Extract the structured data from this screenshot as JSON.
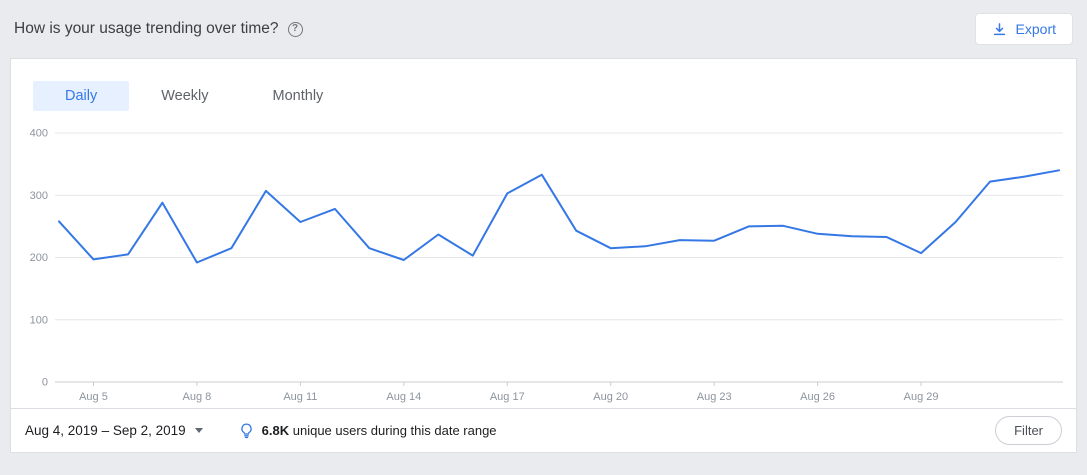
{
  "header": {
    "title": "How is your usage trending over time?",
    "help_glyph": "?",
    "export_label": "Export"
  },
  "tabs": [
    {
      "label": "Daily",
      "active": true
    },
    {
      "label": "Weekly",
      "active": false
    },
    {
      "label": "Monthly",
      "active": false
    }
  ],
  "colors": {
    "accent_blue": "#3578e5",
    "active_tab_bg": "#e7f0fe",
    "grid_line": "#e5e7ea",
    "axis_line": "#c9ccd1",
    "tick_text": "#8d949e"
  },
  "chart_data": {
    "type": "line",
    "title": "Daily usage trend",
    "x": [
      "Aug 4",
      "Aug 5",
      "Aug 6",
      "Aug 7",
      "Aug 8",
      "Aug 9",
      "Aug 10",
      "Aug 11",
      "Aug 12",
      "Aug 13",
      "Aug 14",
      "Aug 15",
      "Aug 16",
      "Aug 17",
      "Aug 18",
      "Aug 19",
      "Aug 20",
      "Aug 21",
      "Aug 22",
      "Aug 23",
      "Aug 24",
      "Aug 25",
      "Aug 26",
      "Aug 27",
      "Aug 28",
      "Aug 29",
      "Aug 30",
      "Aug 31",
      "Sep 1",
      "Sep 2"
    ],
    "values": [
      258,
      197,
      205,
      288,
      192,
      215,
      307,
      257,
      278,
      215,
      196,
      237,
      203,
      303,
      333,
      243,
      215,
      218,
      228,
      227,
      250,
      251,
      238,
      234,
      233,
      207,
      257,
      322,
      330,
      340
    ],
    "x_tick_indices": [
      1,
      4,
      7,
      10,
      13,
      16,
      19,
      22,
      25
    ],
    "x_tick_labels": [
      "Aug 5",
      "Aug 8",
      "Aug 11",
      "Aug 14",
      "Aug 17",
      "Aug 20",
      "Aug 23",
      "Aug 26",
      "Aug 29"
    ],
    "y_ticks": [
      0,
      100,
      200,
      300,
      400
    ],
    "ylim": [
      0,
      400
    ],
    "xlabel": "",
    "ylabel": "",
    "grid": true,
    "legend": false,
    "line_color": "#3578e5"
  },
  "footer": {
    "date_range": "Aug 4, 2019 – Sep 2, 2019",
    "insight_value": "6.8K",
    "insight_text": "unique users during this date range",
    "filter_label": "Filter"
  }
}
